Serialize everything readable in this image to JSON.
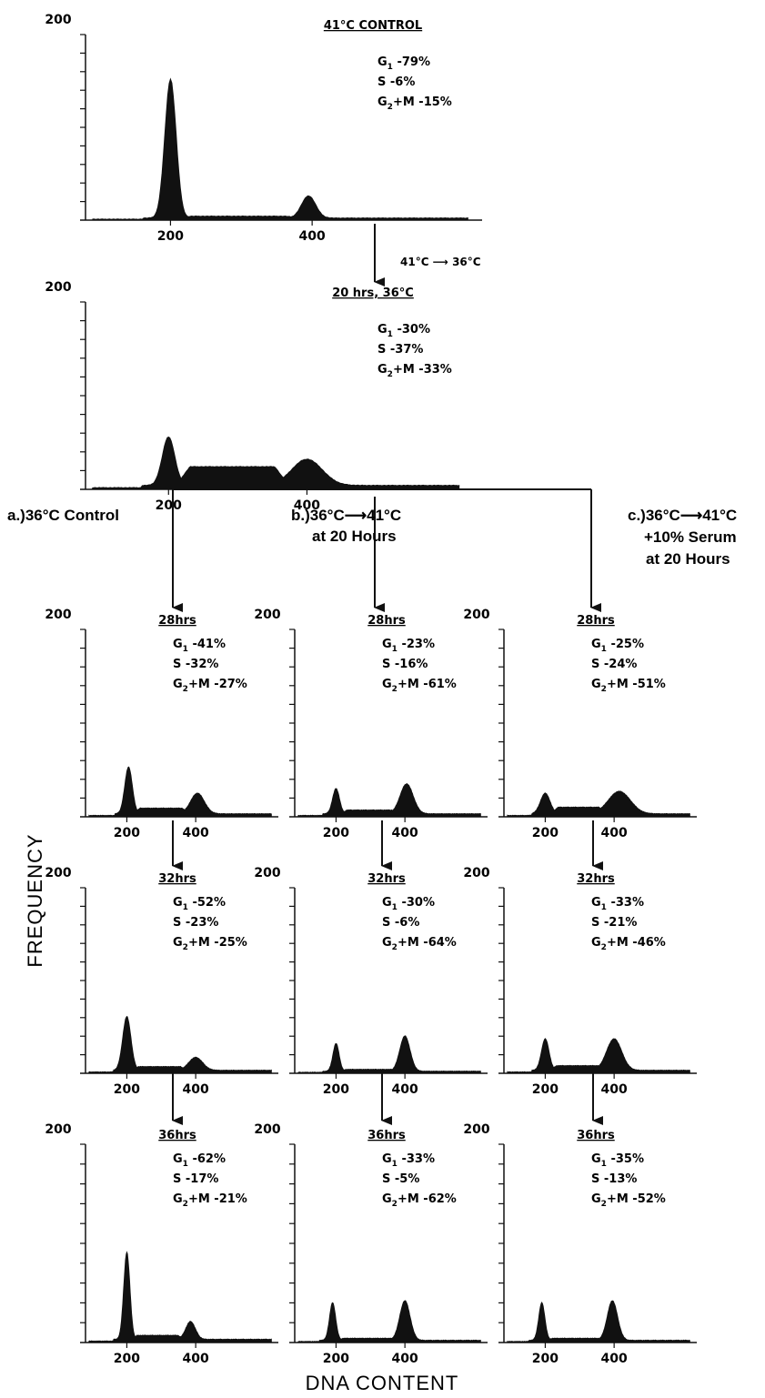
{
  "colors": {
    "ink": "#111111",
    "background": "#ffffff"
  },
  "labels": {
    "y_axis": "FREQUENCY",
    "x_axis": "DNA CONTENT",
    "shift_top": "41°C ⟶ 36°C",
    "branch_a": "a.)36°C Control",
    "branch_b": [
      "b.)36°C⟶41°C",
      "at 20 Hours"
    ],
    "branch_c": [
      "c.)36°C⟶41°C",
      "+10% Serum",
      "at 20 Hours"
    ]
  },
  "chart_data": [
    {
      "id": "p0",
      "type": "area",
      "title": "41°C CONTROL",
      "ymax_label": "200",
      "xticks": [
        "200",
        "400"
      ],
      "ylim": [
        0,
        200
      ],
      "xlim": [
        80,
        640
      ],
      "stats": [
        {
          "phase": "G1",
          "value": "79%"
        },
        {
          "phase": "S",
          "value": "6%"
        },
        {
          "phase": "G2+M",
          "value": "15%"
        }
      ],
      "peaks": [
        {
          "x": 200,
          "y": 150,
          "w": 8
        },
        {
          "x": 395,
          "y": 24,
          "w": 10
        }
      ],
      "baseline": 2,
      "s_level": 2
    },
    {
      "id": "p1",
      "type": "area",
      "title": "20 hrs, 36°C",
      "ymax_label": "200",
      "xticks": [
        "200",
        "400"
      ],
      "ylim": [
        0,
        200
      ],
      "xlim": [
        80,
        640
      ],
      "stats": [
        {
          "phase": "G1",
          "value": "30%"
        },
        {
          "phase": "S",
          "value": "37%"
        },
        {
          "phase": "G2+M",
          "value": "33%"
        }
      ],
      "peaks": [
        {
          "x": 200,
          "y": 52,
          "w": 9
        },
        {
          "x": 400,
          "y": 28,
          "w": 22
        }
      ],
      "baseline": 4,
      "s_level": 20
    },
    {
      "id": "p2",
      "type": "area",
      "title": "28hrs",
      "ymax_label": "200",
      "xticks": [
        "200",
        "400"
      ],
      "ylim": [
        0,
        200
      ],
      "xlim": [
        80,
        640
      ],
      "stats": [
        {
          "phase": "G1",
          "value": "41%"
        },
        {
          "phase": "S",
          "value": "32%"
        },
        {
          "phase": "G2+M",
          "value": "27%"
        }
      ],
      "peaks": [
        {
          "x": 205,
          "y": 50,
          "w": 11
        },
        {
          "x": 405,
          "y": 22,
          "w": 20
        }
      ],
      "baseline": 3,
      "s_level": 6
    },
    {
      "id": "p3",
      "type": "area",
      "title": "28hrs",
      "ymax_label": "200",
      "xticks": [
        "200",
        "400"
      ],
      "ylim": [
        0,
        200
      ],
      "xlim": [
        80,
        640
      ],
      "stats": [
        {
          "phase": "G1",
          "value": "23%"
        },
        {
          "phase": "S",
          "value": "16%"
        },
        {
          "phase": "G2+M",
          "value": "61%"
        }
      ],
      "peaks": [
        {
          "x": 200,
          "y": 27,
          "w": 10
        },
        {
          "x": 405,
          "y": 32,
          "w": 19
        }
      ],
      "baseline": 3,
      "s_level": 4
    },
    {
      "id": "p4",
      "type": "area",
      "title": "28hrs",
      "ymax_label": "200",
      "xticks": [
        "200",
        "400"
      ],
      "ylim": [
        0,
        200
      ],
      "xlim": [
        80,
        640
      ],
      "stats": [
        {
          "phase": "G1",
          "value": "25%"
        },
        {
          "phase": "S",
          "value": "24%"
        },
        {
          "phase": "G2+M",
          "value": "51%"
        }
      ],
      "peaks": [
        {
          "x": 200,
          "y": 22,
          "w": 14
        },
        {
          "x": 415,
          "y": 24,
          "w": 32
        }
      ],
      "baseline": 3,
      "s_level": 7
    },
    {
      "id": "p5",
      "type": "area",
      "title": "32hrs",
      "ymax_label": "200",
      "xticks": [
        "200",
        "400"
      ],
      "ylim": [
        0,
        200
      ],
      "xlim": [
        80,
        640
      ],
      "stats": [
        {
          "phase": "G1",
          "value": "52%"
        },
        {
          "phase": "S",
          "value": "23%"
        },
        {
          "phase": "G2+M",
          "value": "25%"
        }
      ],
      "peaks": [
        {
          "x": 200,
          "y": 58,
          "w": 12
        },
        {
          "x": 400,
          "y": 14,
          "w": 20
        }
      ],
      "baseline": 3,
      "s_level": 4
    },
    {
      "id": "p6",
      "type": "area",
      "title": "32hrs",
      "ymax_label": "200",
      "xticks": [
        "200",
        "400"
      ],
      "ylim": [
        0,
        200
      ],
      "xlim": [
        80,
        640
      ],
      "stats": [
        {
          "phase": "G1",
          "value": "30%"
        },
        {
          "phase": "S",
          "value": "6%"
        },
        {
          "phase": "G2+M",
          "value": "64%"
        }
      ],
      "peaks": [
        {
          "x": 200,
          "y": 30,
          "w": 9
        },
        {
          "x": 400,
          "y": 38,
          "w": 15
        }
      ],
      "baseline": 2,
      "s_level": 2
    },
    {
      "id": "p7",
      "type": "area",
      "title": "32hrs",
      "ymax_label": "200",
      "xticks": [
        "200",
        "400"
      ],
      "ylim": [
        0,
        200
      ],
      "xlim": [
        80,
        640
      ],
      "stats": [
        {
          "phase": "G1",
          "value": "33%"
        },
        {
          "phase": "S",
          "value": "21%"
        },
        {
          "phase": "G2+M",
          "value": "46%"
        }
      ],
      "peaks": [
        {
          "x": 200,
          "y": 34,
          "w": 11
        },
        {
          "x": 400,
          "y": 34,
          "w": 22
        }
      ],
      "baseline": 3,
      "s_level": 5
    },
    {
      "id": "p8",
      "type": "area",
      "title": "36hrs",
      "ymax_label": "200",
      "xticks": [
        "200",
        "400"
      ],
      "ylim": [
        0,
        200
      ],
      "xlim": [
        80,
        640
      ],
      "stats": [
        {
          "phase": "G1",
          "value": "62%"
        },
        {
          "phase": "S",
          "value": "17%"
        },
        {
          "phase": "G2+M",
          "value": "21%"
        }
      ],
      "peaks": [
        {
          "x": 200,
          "y": 88,
          "w": 9
        },
        {
          "x": 385,
          "y": 18,
          "w": 14
        }
      ],
      "baseline": 3,
      "s_level": 4
    },
    {
      "id": "p9",
      "type": "area",
      "title": "36hrs",
      "ymax_label": "200",
      "xticks": [
        "200",
        "400"
      ],
      "ylim": [
        0,
        200
      ],
      "xlim": [
        80,
        640
      ],
      "stats": [
        {
          "phase": "G1",
          "value": "33%"
        },
        {
          "phase": "S",
          "value": "5%"
        },
        {
          "phase": "G2+M",
          "value": "62%"
        }
      ],
      "peaks": [
        {
          "x": 190,
          "y": 38,
          "w": 9
        },
        {
          "x": 400,
          "y": 40,
          "w": 15
        }
      ],
      "baseline": 2,
      "s_level": 2
    },
    {
      "id": "p10",
      "type": "area",
      "title": "36hrs",
      "ymax_label": "200",
      "xticks": [
        "200",
        "400"
      ],
      "ylim": [
        0,
        200
      ],
      "xlim": [
        80,
        640
      ],
      "stats": [
        {
          "phase": "G1",
          "value": "35%"
        },
        {
          "phase": "S",
          "value": "13%"
        },
        {
          "phase": "G2+M",
          "value": "52%"
        }
      ],
      "peaks": [
        {
          "x": 190,
          "y": 38,
          "w": 9
        },
        {
          "x": 395,
          "y": 40,
          "w": 15
        }
      ],
      "baseline": 2,
      "s_level": 2
    }
  ]
}
